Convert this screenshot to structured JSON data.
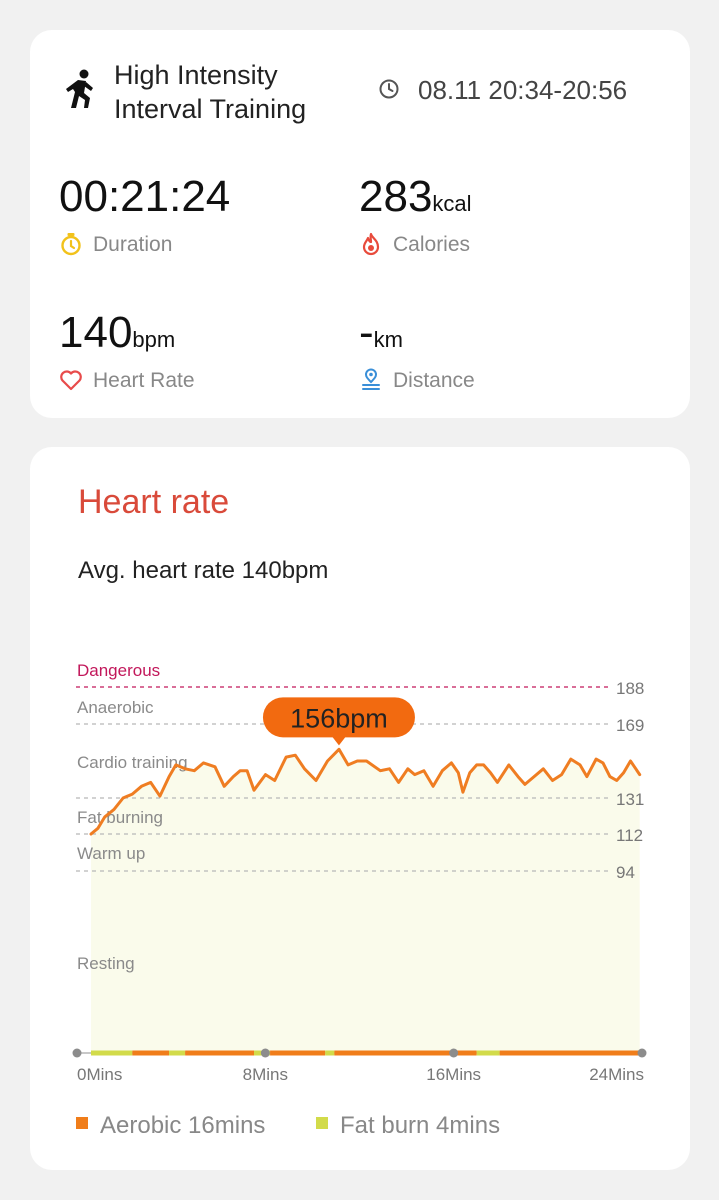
{
  "summary": {
    "title": "High Intensity Interval Training",
    "datetime": "08.11 20:34-20:56",
    "metrics": {
      "duration": {
        "value": "00:21:24",
        "unit": "",
        "label": "Duration"
      },
      "calories": {
        "value": "283",
        "unit": "kcal",
        "label": "Calories"
      },
      "heart_rate": {
        "value": "140",
        "unit": "bpm",
        "label": "Heart Rate"
      },
      "distance": {
        "value": "-",
        "unit": "km",
        "label": "Distance"
      }
    }
  },
  "heart_rate": {
    "title": "Heart rate",
    "avg_text": "Avg. heart rate 140bpm",
    "peak_label": "156bpm",
    "legend": [
      {
        "label": "Aerobic 16mins",
        "color": "#f07d1a"
      },
      {
        "label": "Fat burn 4mins",
        "color": "#d2db4a"
      }
    ]
  },
  "colors": {
    "accent_red": "#d94a3a",
    "line_orange": "#ef7d22",
    "fill": "#fafbeb",
    "dangerous": "#c2185b"
  },
  "chart_data": {
    "type": "area",
    "title": "",
    "xlabel": "",
    "ylabel": "",
    "x_ticks": [
      "0Mins",
      "8Mins",
      "16Mins",
      "24Mins"
    ],
    "xlim": [
      0,
      24
    ],
    "zones": [
      {
        "name": "Dangerous",
        "threshold": 188
      },
      {
        "name": "Anaerobic",
        "threshold": 169
      },
      {
        "name": "Cardio training",
        "threshold": 150
      },
      {
        "name": "Fat burning",
        "threshold": 131
      },
      {
        "name": "Warm up",
        "threshold": 112
      },
      {
        "name": "Resting",
        "threshold": 94
      }
    ],
    "y_ticks": [
      188,
      169,
      131,
      112,
      94
    ],
    "peak": {
      "x": 10.8,
      "y": 156
    },
    "series": [
      {
        "values": [
          [
            0.0,
            112
          ],
          [
            0.3,
            115
          ],
          [
            0.6,
            121
          ],
          [
            1.0,
            125
          ],
          [
            1.4,
            131
          ],
          [
            1.8,
            133
          ],
          [
            2.2,
            137
          ],
          [
            2.6,
            139
          ],
          [
            3.0,
            132
          ],
          [
            3.4,
            142
          ],
          [
            3.7,
            148
          ],
          [
            4.1,
            146
          ],
          [
            4.5,
            145
          ],
          [
            4.9,
            149
          ],
          [
            5.4,
            147
          ],
          [
            5.8,
            137
          ],
          [
            6.2,
            142
          ],
          [
            6.5,
            145
          ],
          [
            6.8,
            145
          ],
          [
            7.1,
            135
          ],
          [
            7.6,
            143
          ],
          [
            8.0,
            140
          ],
          [
            8.5,
            152
          ],
          [
            8.9,
            153
          ],
          [
            9.3,
            146
          ],
          [
            9.8,
            140
          ],
          [
            10.3,
            150
          ],
          [
            10.8,
            156
          ],
          [
            11.2,
            148
          ],
          [
            11.6,
            150
          ],
          [
            12.0,
            150
          ],
          [
            12.6,
            145
          ],
          [
            13.0,
            146
          ],
          [
            13.4,
            139
          ],
          [
            13.8,
            146
          ],
          [
            14.1,
            143
          ],
          [
            14.5,
            145
          ],
          [
            14.9,
            137
          ],
          [
            15.3,
            145
          ],
          [
            15.7,
            149
          ],
          [
            16.0,
            144
          ],
          [
            16.2,
            134
          ],
          [
            16.5,
            144
          ],
          [
            16.8,
            148
          ],
          [
            17.1,
            148
          ],
          [
            17.4,
            144
          ],
          [
            17.7,
            139
          ],
          [
            18.2,
            148
          ],
          [
            18.6,
            142
          ],
          [
            18.9,
            138
          ],
          [
            19.3,
            142
          ],
          [
            19.7,
            146
          ],
          [
            20.1,
            140
          ],
          [
            20.5,
            143
          ],
          [
            20.9,
            151
          ],
          [
            21.3,
            148
          ],
          [
            21.6,
            142
          ],
          [
            22.0,
            151
          ],
          [
            22.3,
            149
          ],
          [
            22.6,
            142
          ],
          [
            22.9,
            140
          ],
          [
            23.2,
            144
          ],
          [
            23.5,
            150
          ],
          [
            23.9,
            143
          ]
        ]
      }
    ],
    "bottom_bar": [
      {
        "from": 0.0,
        "to": 1.8,
        "zone": "fat_burn"
      },
      {
        "from": 1.8,
        "to": 3.4,
        "zone": "aerobic"
      },
      {
        "from": 3.4,
        "to": 4.1,
        "zone": "fat_burn"
      },
      {
        "from": 4.1,
        "to": 7.1,
        "zone": "aerobic"
      },
      {
        "from": 7.1,
        "to": 7.8,
        "zone": "fat_burn"
      },
      {
        "from": 7.8,
        "to": 10.2,
        "zone": "aerobic"
      },
      {
        "from": 10.2,
        "to": 10.6,
        "zone": "fat_burn"
      },
      {
        "from": 10.6,
        "to": 16.8,
        "zone": "aerobic"
      },
      {
        "from": 16.8,
        "to": 17.8,
        "zone": "fat_burn"
      },
      {
        "from": 17.8,
        "to": 23.9,
        "zone": "aerobic"
      }
    ]
  }
}
